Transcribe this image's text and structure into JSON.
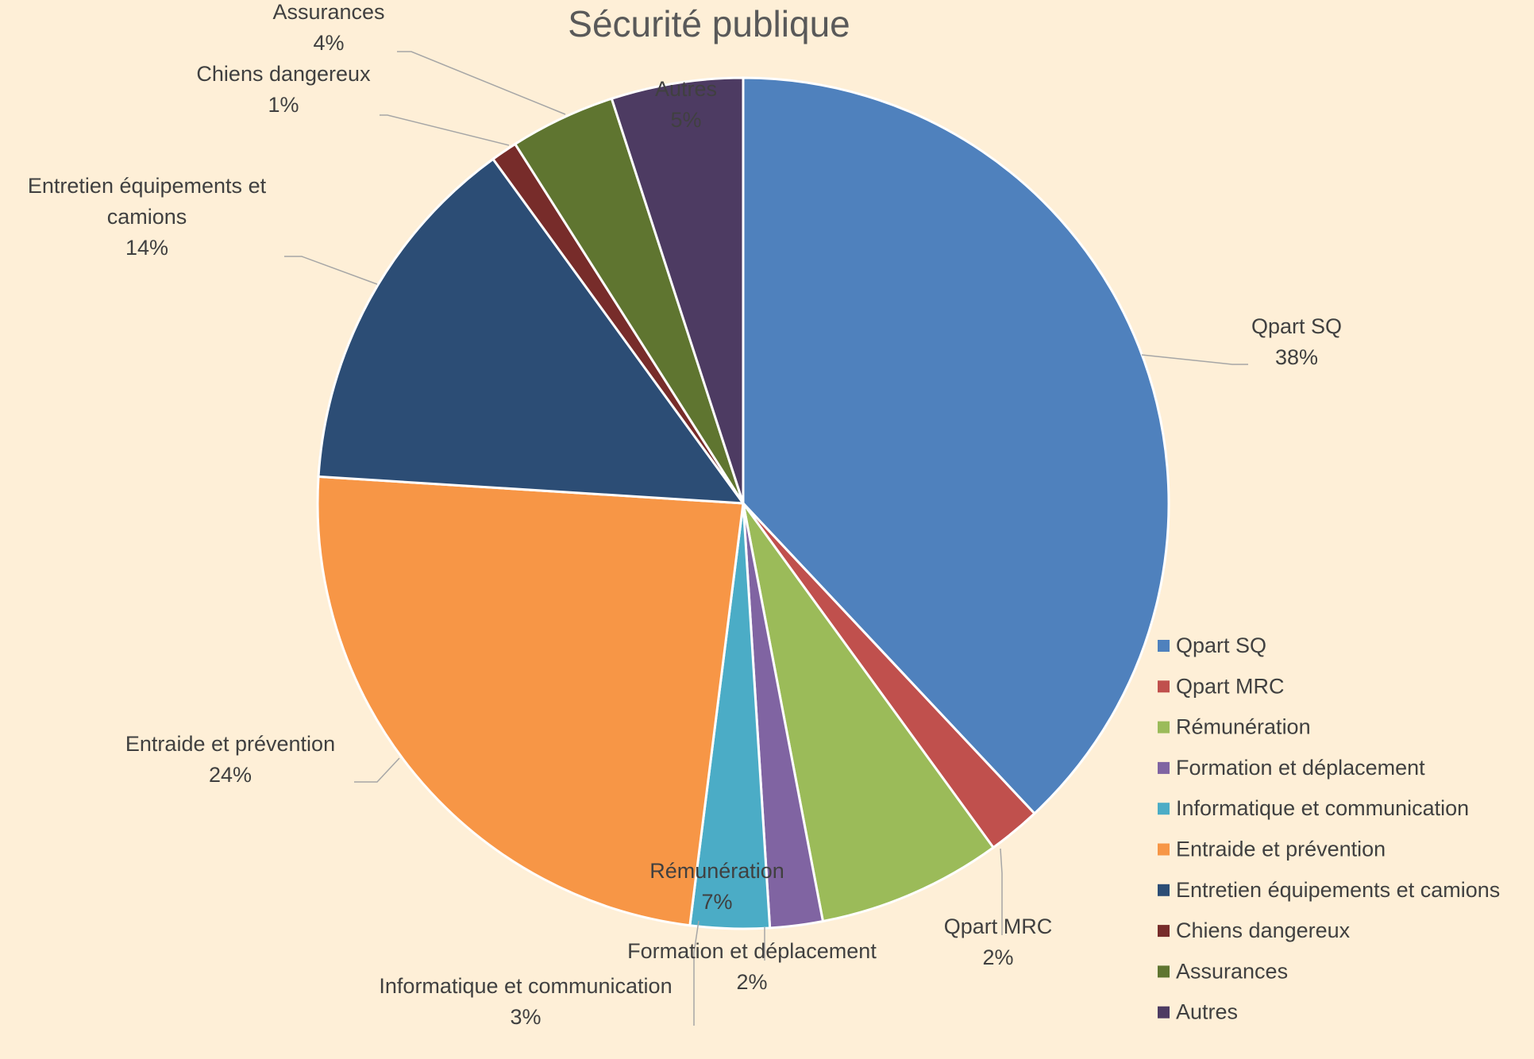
{
  "chart_data": {
    "type": "pie",
    "title": "Sécurité publique",
    "series": [
      {
        "name": "Qpart SQ",
        "value": 38,
        "label": "38%",
        "color": "#4F81BD"
      },
      {
        "name": "Qpart MRC",
        "value": 2,
        "label": "2%",
        "color": "#C0504D"
      },
      {
        "name": "Rémunération",
        "value": 7,
        "label": "7%",
        "color": "#9BBB59"
      },
      {
        "name": "Formation et déplacement",
        "value": 2,
        "label": "2%",
        "color": "#8064A2"
      },
      {
        "name": "Informatique et communication",
        "value": 3,
        "label": "3%",
        "color": "#4BACC6"
      },
      {
        "name": "Entraide et prévention",
        "value": 24,
        "label": "24%",
        "color": "#F79646"
      },
      {
        "name": "Entretien équipements et camions",
        "value": 14,
        "label": "14%",
        "color": "#2C4D75",
        "label_lines": [
          "Entretien équipements et",
          "camions"
        ]
      },
      {
        "name": "Chiens dangereux",
        "value": 1,
        "label": "1%",
        "color": "#772C2A"
      },
      {
        "name": "Assurances",
        "value": 4,
        "label": "4%",
        "color": "#5F7530"
      },
      {
        "name": "Autres",
        "value": 5,
        "label": "5%",
        "color": "#4D3B62"
      }
    ],
    "legend_position": "right"
  }
}
